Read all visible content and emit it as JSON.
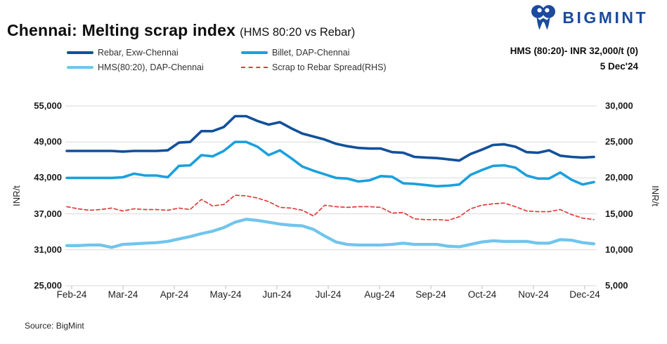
{
  "header": {
    "title": "Chennai: Melting scrap index",
    "subtitle": "(HMS 80:20 vs Rebar)",
    "brand": "BIGMINT",
    "annotation_price": "HMS (80:20)- INR 32,000/t (0)",
    "annotation_date": "5 Dec'24"
  },
  "footer": {
    "source": "Source: BigMint"
  },
  "colors": {
    "rebar": "#12509a",
    "billet": "#1ba0dc",
    "hms": "#70c5ec",
    "spread": "#e03c3c",
    "logo": "#1b4a9e",
    "grid": "#d9d9d9",
    "axis": "#bdbdbd"
  },
  "chart_data": {
    "type": "line",
    "title": "Chennai: Melting scrap index (HMS 80:20 vs Rebar)",
    "legend_position": "top",
    "grid": "horizontal",
    "x_axis": {
      "labels": [
        "Feb-24",
        "Mar-24",
        "Apr-24",
        "May-24",
        "Jun-24",
        "Jul-24",
        "Aug-24",
        "Sep-24",
        "Oct-24",
        "Nov-24",
        "Dec-24"
      ],
      "sampling": "approx. weekly points, Feb-24 through early Dec-24"
    },
    "y_left": {
      "label": "INR/t",
      "min": 25000,
      "max": 55000,
      "tick_values": [
        55000,
        49000,
        43000,
        37000,
        31000,
        25000
      ],
      "tick_labels": [
        "55,000",
        "49,000",
        "43,000",
        "37,000",
        "31,000",
        "25,000"
      ]
    },
    "y_right": {
      "label": "INR/t",
      "min": 5000,
      "max": 30000,
      "tick_values": [
        30000,
        25000,
        20000,
        15000,
        10000,
        5000
      ],
      "tick_labels": [
        "30,000",
        "25,000",
        "20,000",
        "15,000",
        "10,000",
        "5,000"
      ]
    },
    "legend": [
      {
        "label": "Rebar, Exw-Chennai",
        "color_key": "rebar",
        "style": "solid"
      },
      {
        "label": "Billet, DAP-Chennai",
        "color_key": "billet",
        "style": "solid"
      },
      {
        "label": "HMS(80:20), DAP-Chennai",
        "color_key": "hms",
        "style": "solid"
      },
      {
        "label": "Scrap to Rebar Spread(RHS)",
        "color_key": "spread",
        "style": "dashed"
      }
    ],
    "series": [
      {
        "name": "Rebar, Exw-Chennai",
        "axis": "left",
        "color_key": "rebar",
        "style": "solid",
        "values": [
          47500,
          47500,
          47500,
          47500,
          47500,
          47400,
          47500,
          47500,
          47500,
          47600,
          48900,
          49000,
          50800,
          50800,
          51500,
          53300,
          53300,
          52500,
          51900,
          52300,
          51300,
          50400,
          49900,
          49400,
          48700,
          48300,
          48000,
          47900,
          47900,
          47300,
          47200,
          46500,
          46400,
          46300,
          46100,
          45900,
          47000,
          47700,
          48500,
          48600,
          48200,
          47300,
          47200,
          47600,
          46700,
          46500,
          46400,
          46500
        ]
      },
      {
        "name": "Billet, DAP-Chennai",
        "axis": "left",
        "color_key": "billet",
        "style": "solid",
        "values": [
          43000,
          43000,
          43000,
          43000,
          43000,
          43100,
          43700,
          43400,
          43400,
          43100,
          45000,
          45100,
          46800,
          46600,
          47500,
          49000,
          49000,
          48200,
          46800,
          47600,
          46300,
          44900,
          44200,
          43600,
          43000,
          42900,
          42400,
          42600,
          43300,
          43200,
          42100,
          42000,
          41800,
          41600,
          41700,
          41900,
          43500,
          44300,
          45000,
          45100,
          44700,
          43400,
          42900,
          42900,
          43900,
          42700,
          41900,
          42300
        ]
      },
      {
        "name": "HMS(80:20), DAP-Chennai",
        "axis": "left",
        "color_key": "hms",
        "style": "solid",
        "values": [
          31700,
          31700,
          31800,
          31800,
          31400,
          31900,
          32000,
          32100,
          32200,
          32400,
          32800,
          33200,
          33700,
          34100,
          34700,
          35600,
          36100,
          35900,
          35600,
          35300,
          35100,
          35000,
          34400,
          33300,
          32300,
          31900,
          31800,
          31800,
          31800,
          31900,
          32100,
          31900,
          31900,
          31900,
          31600,
          31500,
          31900,
          32300,
          32500,
          32400,
          32400,
          32400,
          32100,
          32100,
          32700,
          32600,
          32200,
          32000
        ]
      },
      {
        "name": "Scrap to Rebar Spread(RHS)",
        "axis": "right",
        "color_key": "spread",
        "style": "dashed",
        "values": [
          16000,
          15700,
          15500,
          15600,
          15800,
          15400,
          15700,
          15600,
          15600,
          15500,
          15800,
          15600,
          17000,
          16100,
          16300,
          17600,
          17500,
          17200,
          16700,
          15900,
          15800,
          15500,
          14700,
          16200,
          16000,
          15900,
          16000,
          16000,
          15900,
          15100,
          15200,
          14300,
          14200,
          14200,
          14100,
          14600,
          15700,
          16200,
          16400,
          16500,
          16000,
          15400,
          15300,
          15300,
          15600,
          14900,
          14400,
          14200
        ]
      }
    ]
  }
}
